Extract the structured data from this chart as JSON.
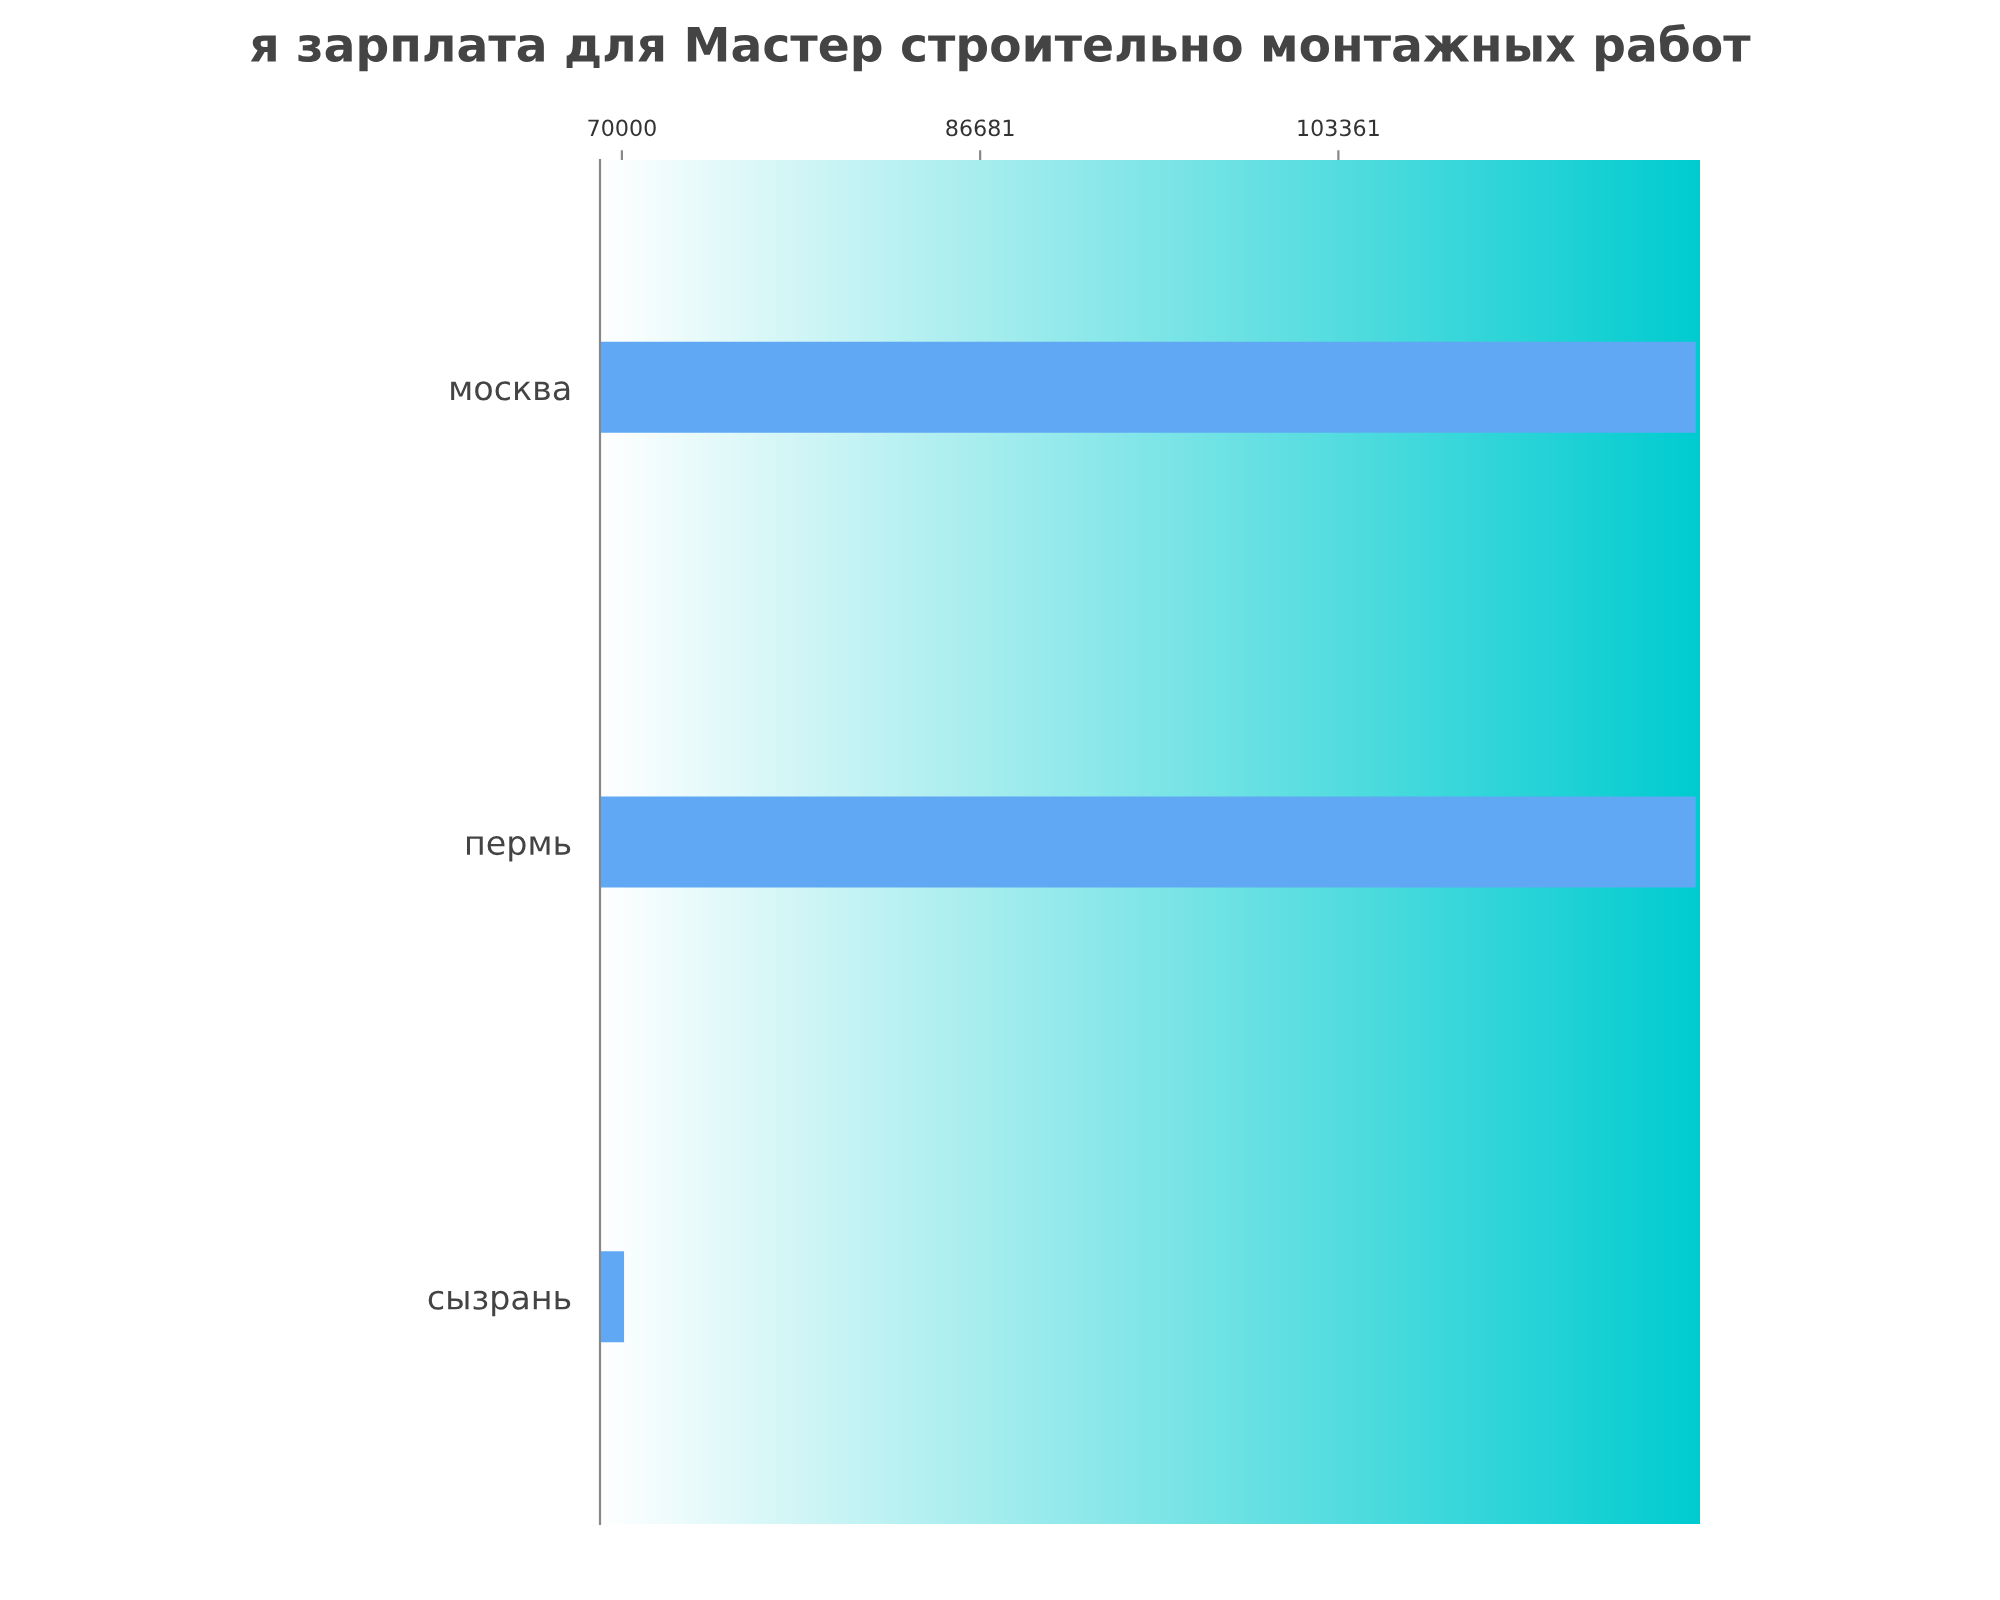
{
  "chart_data": {
    "type": "bar",
    "orientation": "horizontal",
    "title": "я зарплата для Мастер строительно монтажных работ",
    "categories": [
      "москва",
      "пермь",
      "сызрань"
    ],
    "values": [
      120000,
      120000,
      70100
    ],
    "color": "#61a8f4",
    "xlim": [
      68980,
      120200
    ],
    "xticks": [
      70000,
      86681,
      103361
    ],
    "grid": false,
    "legend": false
  }
}
